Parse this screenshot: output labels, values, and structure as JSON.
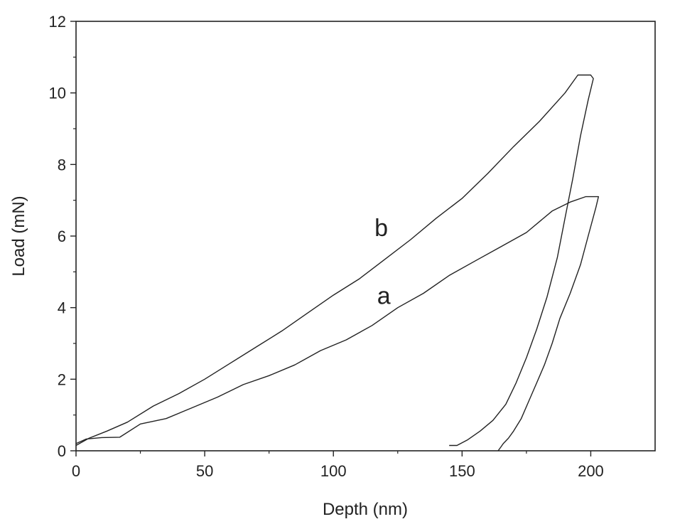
{
  "chart_data": {
    "type": "line",
    "xlabel": "Depth (nm)",
    "ylabel": "Load (mN)",
    "xlim": [
      0,
      225
    ],
    "ylim": [
      0,
      12
    ],
    "x_ticks": [
      0,
      50,
      100,
      150,
      200
    ],
    "y_ticks": [
      0,
      2,
      4,
      6,
      8,
      10,
      12
    ],
    "grid": false,
    "legend": "none",
    "line_color": "#222222",
    "series": [
      {
        "name": "a",
        "x": [
          0,
          4,
          10,
          17,
          25,
          35,
          45,
          55,
          65,
          75,
          85,
          95,
          105,
          115,
          125,
          135,
          145,
          155,
          165,
          175,
          185,
          192,
          198,
          203,
          202,
          199,
          196,
          192,
          188,
          185,
          182,
          179,
          176,
          173,
          170,
          168,
          166,
          165,
          164
        ],
        "y": [
          0.2,
          0.33,
          0.37,
          0.38,
          0.75,
          0.9,
          1.2,
          1.5,
          1.85,
          2.1,
          2.4,
          2.8,
          3.1,
          3.5,
          4.0,
          4.4,
          4.9,
          5.3,
          5.7,
          6.1,
          6.7,
          6.95,
          7.1,
          7.1,
          6.8,
          6.0,
          5.2,
          4.4,
          3.7,
          3.0,
          2.4,
          1.9,
          1.4,
          0.9,
          0.55,
          0.35,
          0.2,
          0.1,
          0.0
        ]
      },
      {
        "name": "b",
        "x": [
          0,
          5,
          12,
          20,
          30,
          40,
          50,
          60,
          70,
          80,
          90,
          100,
          110,
          120,
          130,
          140,
          150,
          160,
          170,
          180,
          190,
          195,
          200,
          201,
          199,
          196,
          193,
          190,
          187,
          183,
          179,
          175,
          171,
          167,
          162,
          157,
          152,
          148,
          145
        ],
        "y": [
          0.15,
          0.35,
          0.55,
          0.8,
          1.25,
          1.6,
          2.0,
          2.45,
          2.9,
          3.35,
          3.85,
          4.35,
          4.8,
          5.35,
          5.9,
          6.5,
          7.05,
          7.75,
          8.5,
          9.2,
          10.0,
          10.5,
          10.5,
          10.4,
          9.8,
          8.8,
          7.6,
          6.5,
          5.4,
          4.3,
          3.4,
          2.6,
          1.9,
          1.3,
          0.85,
          0.55,
          0.3,
          0.15,
          0.15
        ]
      }
    ],
    "annotations": [
      {
        "text": "a",
        "x": 117,
        "y": 4.1
      },
      {
        "text": "b",
        "x": 116,
        "y": 6.0
      }
    ]
  }
}
